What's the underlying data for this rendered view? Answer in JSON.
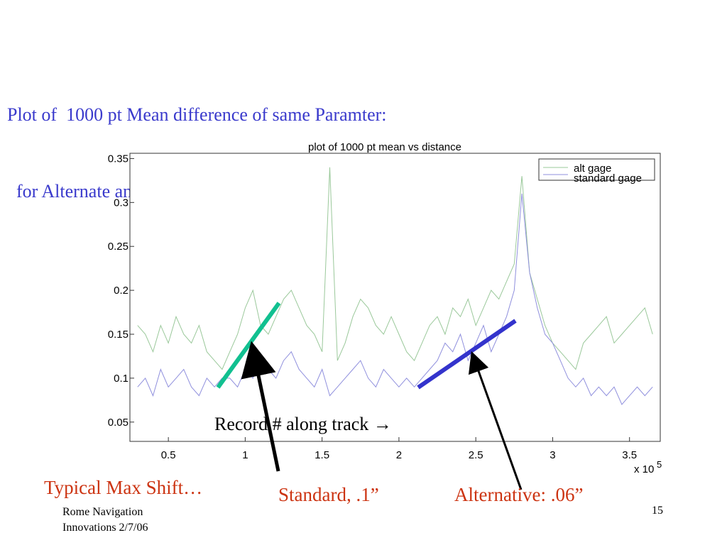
{
  "slide": {
    "title_line1": "Plot of  1000 pt Mean difference of same Paramter:",
    "title_line2": "  for Alternate and Standard Gages Vs. Distance",
    "annotations": {
      "record": "Record # along track →",
      "typical": "Typical Max Shift…",
      "standard": "Standard, .1”",
      "alternative": "Alternative: .06”"
    },
    "footer": {
      "line1": "Rome Navigation",
      "line2": "Innovations 2/7/06",
      "page": "15"
    },
    "colors": {
      "title": "#3a3acc",
      "annotation_red": "#cc3311",
      "standard_marker": "#11c090",
      "alternative_marker": "#3333cc",
      "arrows": "#000000"
    }
  },
  "chart_data": {
    "type": "line",
    "title": "plot of 1000 pt mean vs distance",
    "x_multiplier_label": "x 10",
    "x_multiplier_exponent": "5",
    "xlim": [
      0.25,
      3.7
    ],
    "ylim": [
      0.028,
      0.356
    ],
    "xticks": [
      0.5,
      1,
      1.5,
      2,
      2.5,
      3,
      3.5
    ],
    "xtick_labels": [
      "0.5",
      "1",
      "1.5",
      "2",
      "2.5",
      "3",
      "3.5"
    ],
    "yticks": [
      0.05,
      0.1,
      0.15,
      0.2,
      0.25,
      0.3,
      0.35
    ],
    "ytick_labels": [
      "0.05",
      "0.1",
      "0.15",
      "0.2",
      "0.25",
      "0.3",
      "0.35"
    ],
    "grid": false,
    "legend_position": "top-right",
    "x": [
      0.3,
      0.35,
      0.4,
      0.45,
      0.5,
      0.55,
      0.6,
      0.65,
      0.7,
      0.75,
      0.8,
      0.85,
      0.9,
      0.95,
      1.0,
      1.05,
      1.1,
      1.15,
      1.2,
      1.25,
      1.3,
      1.35,
      1.4,
      1.45,
      1.5,
      1.55,
      1.6,
      1.65,
      1.7,
      1.75,
      1.8,
      1.85,
      1.9,
      1.95,
      2.0,
      2.05,
      2.1,
      2.15,
      2.2,
      2.25,
      2.3,
      2.35,
      2.4,
      2.45,
      2.5,
      2.55,
      2.6,
      2.65,
      2.7,
      2.75,
      2.8,
      2.85,
      2.9,
      2.95,
      3.0,
      3.05,
      3.1,
      3.15,
      3.2,
      3.25,
      3.3,
      3.35,
      3.4,
      3.45,
      3.5,
      3.55,
      3.6,
      3.65
    ],
    "series": [
      {
        "name": "alt gage",
        "color": "#9ac89a",
        "values": [
          0.16,
          0.15,
          0.13,
          0.16,
          0.14,
          0.17,
          0.15,
          0.14,
          0.16,
          0.13,
          0.12,
          0.11,
          0.13,
          0.15,
          0.18,
          0.2,
          0.16,
          0.15,
          0.17,
          0.19,
          0.2,
          0.18,
          0.16,
          0.15,
          0.13,
          0.34,
          0.12,
          0.14,
          0.17,
          0.19,
          0.18,
          0.16,
          0.15,
          0.17,
          0.15,
          0.13,
          0.12,
          0.14,
          0.16,
          0.17,
          0.15,
          0.18,
          0.17,
          0.19,
          0.16,
          0.18,
          0.2,
          0.19,
          0.21,
          0.23,
          0.33,
          0.22,
          0.19,
          0.16,
          0.14,
          0.13,
          0.12,
          0.11,
          0.14,
          0.15,
          0.16,
          0.17,
          0.14,
          0.15,
          0.16,
          0.17,
          0.18,
          0.15
        ]
      },
      {
        "name": "standard gage",
        "color": "#8f8fdd",
        "values": [
          0.09,
          0.1,
          0.08,
          0.11,
          0.09,
          0.1,
          0.11,
          0.09,
          0.08,
          0.1,
          0.09,
          0.1,
          0.1,
          0.09,
          0.11,
          0.1,
          0.12,
          0.11,
          0.1,
          0.12,
          0.13,
          0.11,
          0.1,
          0.09,
          0.11,
          0.08,
          0.09,
          0.1,
          0.11,
          0.12,
          0.1,
          0.09,
          0.11,
          0.1,
          0.09,
          0.1,
          0.09,
          0.1,
          0.11,
          0.12,
          0.14,
          0.13,
          0.15,
          0.12,
          0.14,
          0.16,
          0.13,
          0.15,
          0.17,
          0.2,
          0.31,
          0.22,
          0.18,
          0.15,
          0.14,
          0.12,
          0.1,
          0.09,
          0.1,
          0.08,
          0.09,
          0.08,
          0.09,
          0.07,
          0.08,
          0.09,
          0.08,
          0.09
        ]
      }
    ]
  }
}
